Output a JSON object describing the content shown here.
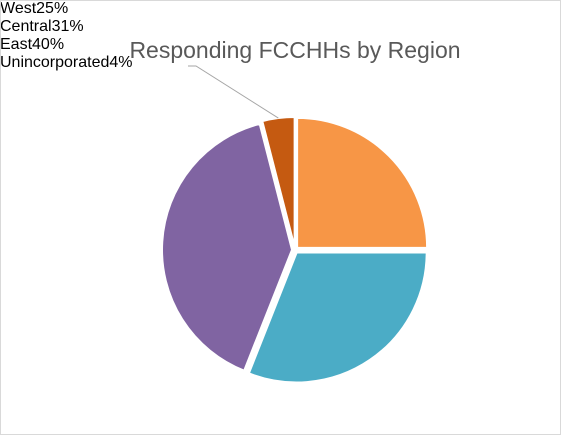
{
  "chart_data": {
    "type": "pie",
    "title": "Responding FCCHHs by Region",
    "categories": [
      "West",
      "Central",
      "East",
      "Unincorporated"
    ],
    "values": [
      25,
      31,
      40,
      4
    ],
    "value_labels": [
      "25%",
      "31%",
      "40%",
      "4%"
    ],
    "colors": [
      "#F79646",
      "#4BACC6",
      "#8064A2",
      "#C55A11"
    ]
  }
}
